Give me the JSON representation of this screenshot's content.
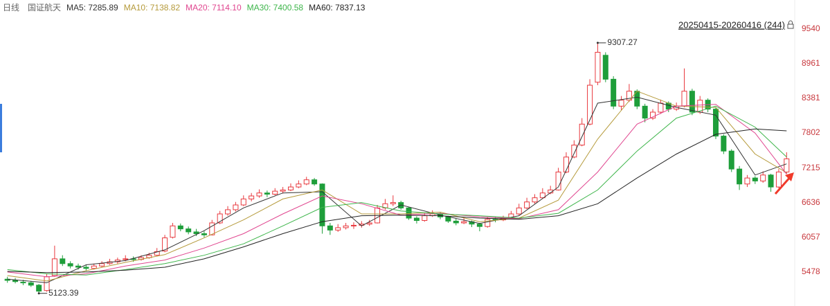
{
  "chart_data": {
    "type": "candlestick",
    "period": "日线",
    "title": "国证航天",
    "range_label": "20250415-20260416 (244)",
    "ylim": [
      4912,
      10023
    ],
    "yticks": [
      5478,
      6057,
      6636,
      7215,
      7802,
      8381,
      8961,
      9540
    ],
    "grid": false,
    "up_color": "#e8383d",
    "down_color": "#1e9e3a",
    "candles": [
      [
        5360,
        5400,
        5300,
        5340
      ],
      [
        5340,
        5380,
        5290,
        5320
      ],
      [
        5310,
        5350,
        5260,
        5300
      ],
      [
        5300,
        5330,
        5230,
        5260
      ],
      [
        5260,
        5280,
        5123.39,
        5160
      ],
      [
        5170,
        5450,
        5150,
        5400
      ],
      [
        5420,
        5920,
        5400,
        5700
      ],
      [
        5700,
        5760,
        5580,
        5620
      ],
      [
        5620,
        5660,
        5540,
        5580
      ],
      [
        5580,
        5620,
        5520,
        5560
      ],
      [
        5560,
        5600,
        5500,
        5540
      ],
      [
        5540,
        5620,
        5520,
        5580
      ],
      [
        5580,
        5660,
        5560,
        5620
      ],
      [
        5620,
        5700,
        5600,
        5650
      ],
      [
        5650,
        5720,
        5620,
        5680
      ],
      [
        5690,
        5760,
        5660,
        5700
      ],
      [
        5700,
        5740,
        5650,
        5690
      ],
      [
        5690,
        5760,
        5670,
        5720
      ],
      [
        5720,
        5800,
        5700,
        5760
      ],
      [
        5760,
        5880,
        5740,
        5820
      ],
      [
        5830,
        6100,
        5810,
        6050
      ],
      [
        6060,
        6300,
        6040,
        6250
      ],
      [
        6250,
        6290,
        6160,
        6200
      ],
      [
        6200,
        6240,
        6110,
        6150
      ],
      [
        6150,
        6200,
        6080,
        6120
      ],
      [
        6120,
        6160,
        6060,
        6100
      ],
      [
        6100,
        6350,
        6090,
        6300
      ],
      [
        6300,
        6500,
        6280,
        6450
      ],
      [
        6450,
        6580,
        6420,
        6520
      ],
      [
        6520,
        6650,
        6490,
        6600
      ],
      [
        6600,
        6760,
        6580,
        6700
      ],
      [
        6700,
        6800,
        6660,
        6750
      ],
      [
        6750,
        6860,
        6720,
        6800
      ],
      [
        6800,
        6840,
        6730,
        6780
      ],
      [
        6780,
        6880,
        6760,
        6830
      ],
      [
        6830,
        6900,
        6790,
        6850
      ],
      [
        6850,
        6960,
        6830,
        6900
      ],
      [
        6900,
        7010,
        6880,
        6950
      ],
      [
        6950,
        7070,
        6930,
        7020
      ],
      [
        7020,
        7050,
        6920,
        6950
      ],
      [
        6950,
        6960,
        6120,
        6250
      ],
      [
        6250,
        6300,
        6100,
        6180
      ],
      [
        6180,
        6280,
        6150,
        6220
      ],
      [
        6220,
        6300,
        6190,
        6250
      ],
      [
        6250,
        6310,
        6200,
        6260
      ],
      [
        6260,
        6330,
        6220,
        6280
      ],
      [
        6280,
        6350,
        6250,
        6300
      ],
      [
        6300,
        6600,
        6290,
        6550
      ],
      [
        6550,
        6700,
        6520,
        6620
      ],
      [
        6620,
        6760,
        6580,
        6640
      ],
      [
        6640,
        6670,
        6520,
        6550
      ],
      [
        6550,
        6570,
        6350,
        6380
      ],
      [
        6380,
        6410,
        6290,
        6340
      ],
      [
        6340,
        6470,
        6320,
        6420
      ],
      [
        6420,
        6510,
        6400,
        6450
      ],
      [
        6450,
        6480,
        6360,
        6400
      ],
      [
        6400,
        6420,
        6300,
        6330
      ],
      [
        6330,
        6370,
        6260,
        6300
      ],
      [
        6300,
        6380,
        6280,
        6320
      ],
      [
        6320,
        6340,
        6230,
        6280
      ],
      [
        6280,
        6300,
        6160,
        6240
      ],
      [
        6240,
        6400,
        6220,
        6360
      ],
      [
        6360,
        6400,
        6310,
        6350
      ],
      [
        6350,
        6420,
        6330,
        6380
      ],
      [
        6380,
        6500,
        6360,
        6450
      ],
      [
        6450,
        6620,
        6430,
        6550
      ],
      [
        6550,
        6720,
        6530,
        6650
      ],
      [
        6650,
        6780,
        6620,
        6720
      ],
      [
        6720,
        6880,
        6700,
        6800
      ],
      [
        6800,
        6920,
        6780,
        6850
      ],
      [
        6850,
        7220,
        6840,
        7150
      ],
      [
        7150,
        7480,
        7130,
        7400
      ],
      [
        7400,
        7680,
        7380,
        7600
      ],
      [
        7600,
        8050,
        7580,
        7950
      ],
      [
        7950,
        8700,
        7930,
        8600
      ],
      [
        8650,
        9307.27,
        8600,
        9150
      ],
      [
        9100,
        9150,
        8650,
        8700
      ],
      [
        8700,
        8750,
        8200,
        8250
      ],
      [
        8250,
        8420,
        8180,
        8350
      ],
      [
        8350,
        8620,
        8320,
        8500
      ],
      [
        8500,
        8530,
        8200,
        8250
      ],
      [
        8250,
        8290,
        7980,
        8050
      ],
      [
        8050,
        8200,
        8020,
        8150
      ],
      [
        8150,
        8360,
        8120,
        8300
      ],
      [
        8300,
        8330,
        8150,
        8200
      ],
      [
        8200,
        8310,
        8170,
        8250
      ],
      [
        8250,
        8880,
        8230,
        8500
      ],
      [
        8500,
        8540,
        8100,
        8150
      ],
      [
        8150,
        8420,
        8120,
        8350
      ],
      [
        8350,
        8380,
        8150,
        8200
      ],
      [
        8200,
        8230,
        7700,
        7750
      ],
      [
        7750,
        7780,
        7450,
        7500
      ],
      [
        7500,
        7530,
        7150,
        7200
      ],
      [
        7200,
        7250,
        6850,
        6950
      ],
      [
        6950,
        7100,
        6900,
        7050
      ],
      [
        7050,
        7080,
        6950,
        7000
      ],
      [
        7000,
        7160,
        6970,
        7100
      ],
      [
        7100,
        7120,
        6820,
        6900
      ],
      [
        6900,
        7200,
        6880,
        7150
      ],
      [
        7150,
        7480,
        7120,
        7370
      ]
    ],
    "ma_x": [
      0,
      5,
      10,
      15,
      20,
      25,
      30,
      35,
      40,
      45,
      50,
      55,
      60,
      65,
      70,
      75,
      80,
      85,
      90,
      95,
      99
    ],
    "series": [
      {
        "name": "MA5: 7285.89",
        "color": "#333333",
        "values": [
          5360,
          5300,
          5600,
          5670,
          5850,
          6170,
          6550,
          6800,
          6820,
          6250,
          6600,
          6430,
          6290,
          6420,
          6900,
          8300,
          8400,
          8230,
          8100,
          7100,
          7286
        ]
      },
      {
        "name": "MA10: 7138.82",
        "color": "#b59a3a",
        "values": [
          5420,
          5330,
          5500,
          5640,
          5770,
          6050,
          6350,
          6700,
          6850,
          6450,
          6450,
          6480,
          6320,
          6380,
          6680,
          7700,
          8500,
          8250,
          8230,
          7450,
          7139
        ]
      },
      {
        "name": "MA20: 7114.10",
        "color": "#e0458f",
        "values": [
          5480,
          5400,
          5450,
          5580,
          5680,
          5880,
          6120,
          6450,
          6750,
          6620,
          6430,
          6460,
          6400,
          6370,
          6520,
          7150,
          7950,
          8250,
          8280,
          7800,
          7114
        ]
      },
      {
        "name": "MA30: 7400.58",
        "color": "#3db54a",
        "values": [
          5520,
          5450,
          5430,
          5520,
          5620,
          5760,
          5950,
          6250,
          6560,
          6640,
          6500,
          6450,
          6420,
          6380,
          6460,
          6850,
          7500,
          8050,
          8250,
          7900,
          7401
        ]
      },
      {
        "name": "MA60: 7837.13",
        "color": "#222222",
        "values": [
          5490,
          5470,
          5480,
          5510,
          5560,
          5700,
          5900,
          6120,
          6320,
          6420,
          6430,
          6420,
          6380,
          6360,
          6420,
          6620,
          7050,
          7450,
          7780,
          7870,
          7837
        ]
      }
    ],
    "annotations": [
      {
        "value": 9307.27,
        "label": "9307.27"
      },
      {
        "value": 5123.39,
        "label": "5123.39"
      }
    ]
  }
}
